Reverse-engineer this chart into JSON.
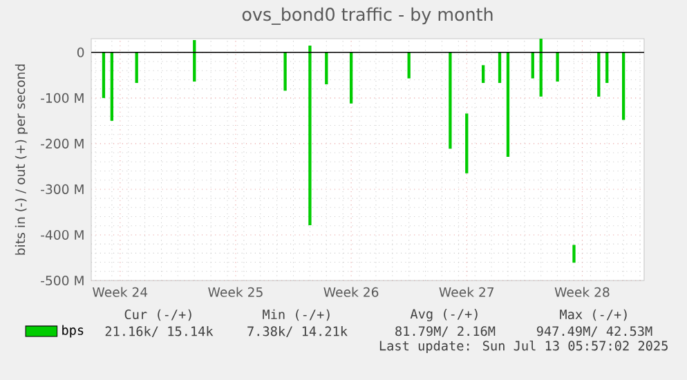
{
  "chart_data": {
    "type": "bar",
    "title": "ovs_bond0 traffic - by month",
    "ylabel": "bits in (-) / out (+) per second",
    "categories": [
      null,
      null,
      null,
      "Week 24",
      null,
      null,
      null,
      null,
      null,
      null,
      null,
      null,
      null,
      null,
      null,
      null,
      null,
      "Week 25",
      null,
      null,
      null,
      null,
      null,
      null,
      null,
      null,
      null,
      null,
      null,
      null,
      null,
      "Week 26",
      null,
      null,
      null,
      null,
      null,
      null,
      null,
      null,
      null,
      null,
      null,
      null,
      null,
      "Week 27",
      null,
      null,
      null,
      null,
      null,
      null,
      null,
      null,
      null,
      null,
      null,
      null,
      null,
      "Week 28",
      null,
      null,
      null,
      null,
      null,
      null,
      null
    ],
    "ylim": [
      -500,
      30
    ],
    "yticks": [
      {
        "value": -500,
        "label": "-500 M"
      },
      {
        "value": -400,
        "label": "-400 M"
      },
      {
        "value": -300,
        "label": "-300 M"
      },
      {
        "value": -200,
        "label": "-200 M"
      },
      {
        "value": -100,
        "label": "-100 M"
      },
      0
    ],
    "grid": true,
    "legend": "bottom",
    "ref_lines": [
      {
        "axis": "y",
        "value": 0,
        "color": "#000000"
      }
    ],
    "series": [
      {
        "name": "bps",
        "color": "#00cc00",
        "base": [
          null,
          0,
          0,
          null,
          null,
          0,
          null,
          null,
          null,
          null,
          null,
          null,
          27,
          null,
          null,
          null,
          null,
          null,
          null,
          null,
          null,
          null,
          null,
          0,
          null,
          null,
          15,
          null,
          0,
          null,
          null,
          0,
          null,
          null,
          null,
          null,
          null,
          null,
          0,
          null,
          null,
          null,
          null,
          0,
          null,
          -134,
          null,
          -28,
          null,
          0,
          0,
          null,
          null,
          0,
          30,
          null,
          0,
          null,
          -422,
          null,
          null,
          0,
          0,
          null,
          0,
          null,
          null
        ],
        "values": [
          null,
          -100,
          -150,
          null,
          null,
          -67,
          null,
          null,
          null,
          null,
          null,
          null,
          -91,
          null,
          null,
          null,
          null,
          null,
          null,
          null,
          null,
          null,
          null,
          -84,
          null,
          null,
          -394,
          null,
          -70,
          null,
          null,
          -112,
          null,
          null,
          null,
          null,
          null,
          null,
          -57,
          null,
          null,
          null,
          null,
          -211,
          null,
          -131,
          null,
          -39,
          null,
          -67,
          -229,
          null,
          null,
          -57,
          -127,
          null,
          -64,
          null,
          -39,
          null,
          null,
          -97,
          -67,
          null,
          -148,
          null,
          null
        ]
      }
    ],
    "annotations": [
      "Cur (-/+)",
      "Min (-/+)",
      "Avg (-/+)",
      "Max (-/+)",
      "21.16k/ 15.14k",
      "7.38k/ 14.21k",
      "81.79M/  2.16M",
      "947.49M/ 42.53M",
      "Last update: Sun Jul 13 05:57:02 2025"
    ]
  }
}
